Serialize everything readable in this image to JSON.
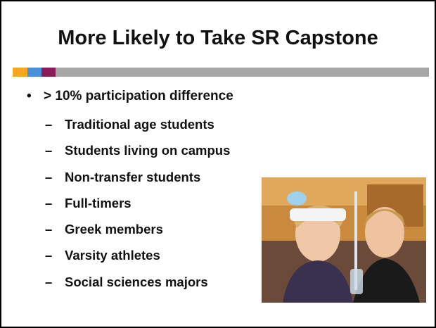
{
  "title": "More Likely to Take SR Capstone",
  "bullet": "> 10% participation difference",
  "sub_bullets": [
    "Traditional age students",
    "Students living on campus",
    "Non-transfer students",
    "Full-timers",
    "Greek members",
    "Varsity athletes",
    "Social sciences majors"
  ]
}
